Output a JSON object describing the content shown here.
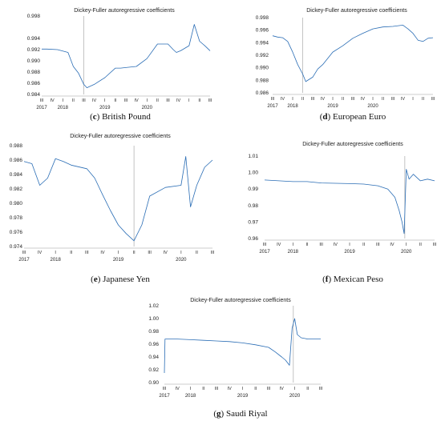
{
  "chart_data": [
    {
      "id": "c",
      "type": "line",
      "title": "Dickey-Fuller autoregressive coefficients",
      "caption_letter": "c",
      "caption_text": " British Pound",
      "ylim": [
        0.984,
        0.998
      ],
      "yticks": [
        "0.998",
        "0.994",
        "0.992",
        "0.990",
        "0.988",
        "0.986",
        "0.984"
      ],
      "ytick_values": [
        0.998,
        0.994,
        0.992,
        0.99,
        0.988,
        0.986,
        0.984
      ],
      "quarters": [
        "III",
        "IV",
        "I",
        "II",
        "III",
        "IV",
        "I",
        "II",
        "III",
        "IV",
        "I",
        "II",
        "III",
        "IV",
        "I",
        "II",
        "III"
      ],
      "years": [
        "2017",
        "2018",
        "2019",
        "2020"
      ],
      "vline_quarter": 4.0,
      "x": [
        0,
        0.5,
        1.5,
        2.5,
        3.0,
        3.5,
        4.0,
        4.3,
        5.0,
        6.0,
        7.0,
        7.5,
        8.0,
        9.0,
        10.0,
        11.0,
        12.0,
        12.5,
        12.8,
        13.2,
        14.0,
        14.5,
        15.0,
        15.5,
        16.0
      ],
      "values": [
        0.9921,
        0.9921,
        0.992,
        0.9915,
        0.989,
        0.9878,
        0.9858,
        0.9852,
        0.9858,
        0.987,
        0.9887,
        0.9887,
        0.9888,
        0.989,
        0.9904,
        0.993,
        0.993,
        0.992,
        0.9915,
        0.9918,
        0.9927,
        0.9965,
        0.9935,
        0.9927,
        0.9918
      ]
    },
    {
      "id": "d",
      "type": "line",
      "title": "Dickey-Fuller autoregressive coefficients",
      "caption_letter": "d",
      "caption_text": " European Euro",
      "ylim": [
        0.986,
        0.998
      ],
      "yticks": [
        "0.998",
        "0.996",
        "0.994",
        "0.992",
        "0.990",
        "0.988",
        "0.986"
      ],
      "ytick_values": [
        0.998,
        0.996,
        0.994,
        0.992,
        0.99,
        0.988,
        0.986
      ],
      "quarters": [
        "III",
        "IV",
        "I",
        "II",
        "III",
        "IV",
        "I",
        "II",
        "III",
        "IV",
        "I",
        "II",
        "III",
        "IV",
        "I",
        "II",
        "III"
      ],
      "years": [
        "2017",
        "2018",
        "2019",
        "2020"
      ],
      "vline_quarter": 3.0,
      "x": [
        0,
        0.5,
        1.0,
        1.5,
        2.0,
        2.5,
        3.0,
        3.3,
        4.0,
        4.5,
        5.0,
        5.5,
        6.0,
        7.0,
        8.0,
        9.0,
        10.0,
        11.0,
        12.0,
        13.0,
        13.5,
        14.0,
        14.5,
        15.0,
        15.5,
        16.0
      ],
      "values": [
        0.9951,
        0.9949,
        0.9948,
        0.9942,
        0.9925,
        0.9905,
        0.989,
        0.9878,
        0.9885,
        0.9898,
        0.9905,
        0.9915,
        0.9925,
        0.9935,
        0.9947,
        0.9955,
        0.9962,
        0.9965,
        0.9966,
        0.9968,
        0.9962,
        0.9955,
        0.9944,
        0.9942,
        0.9947,
        0.9948
      ]
    },
    {
      "id": "e",
      "type": "line",
      "title": "Dickey-Fuller autoregressive coefficients",
      "caption_letter": "e",
      "caption_text": " Japanese Yen",
      "ylim": [
        0.974,
        0.988
      ],
      "yticks": [
        "0.988",
        "0.986",
        "0.984",
        "0.982",
        "0.980",
        "0.978",
        "0.976",
        "0.974"
      ],
      "ytick_values": [
        0.988,
        0.986,
        0.984,
        0.982,
        0.98,
        0.978,
        0.976,
        0.974
      ],
      "quarters": [
        "III",
        "IV",
        "I",
        "II",
        "III",
        "IV",
        "I",
        "II",
        "III",
        "IV",
        "I",
        "II",
        "III"
      ],
      "years": [
        "2017",
        "2018",
        "2019",
        "2020"
      ],
      "vline_quarter": 7.0,
      "x": [
        0,
        0.5,
        1.0,
        1.5,
        2.0,
        2.5,
        3.0,
        4.0,
        4.5,
        5.0,
        5.5,
        6.0,
        6.5,
        7.0,
        7.5,
        8.0,
        9.0,
        10.0,
        10.3,
        10.6,
        11.0,
        11.5,
        12.0
      ],
      "values": [
        0.9858,
        0.9855,
        0.9825,
        0.9835,
        0.9862,
        0.9858,
        0.9853,
        0.9848,
        0.9835,
        0.9812,
        0.979,
        0.977,
        0.9758,
        0.9748,
        0.977,
        0.981,
        0.9822,
        0.9825,
        0.9865,
        0.9795,
        0.9825,
        0.985,
        0.986
      ]
    },
    {
      "id": "f",
      "type": "line",
      "title": "Dickey-Fuller autoregressive coefficients",
      "caption_letter": "f",
      "caption_text": " Mexican Peso",
      "ylim": [
        0.96,
        1.01
      ],
      "yticks": [
        "1.01",
        "1.00",
        "0.99",
        "0.98",
        "0.97",
        "0.96"
      ],
      "ytick_values": [
        1.01,
        1.0,
        0.99,
        0.98,
        0.97,
        0.96
      ],
      "quarters": [
        "III",
        "IV",
        "I",
        "II",
        "III",
        "IV",
        "I",
        "II",
        "III",
        "IV",
        "I",
        "II",
        "III"
      ],
      "years": [
        "2017",
        "2018",
        "2019",
        "2020"
      ],
      "vline_quarter": 9.9,
      "x": [
        0,
        1.0,
        2.0,
        3.0,
        4.0,
        5.0,
        6.0,
        7.0,
        8.0,
        8.7,
        9.2,
        9.5,
        9.7,
        9.85,
        10.0,
        10.2,
        10.5,
        11.0,
        11.5,
        12.0
      ],
      "values": [
        0.9955,
        0.995,
        0.9945,
        0.9945,
        0.9937,
        0.9935,
        0.9933,
        0.993,
        0.992,
        0.99,
        0.985,
        0.977,
        0.97,
        0.963,
        1.002,
        0.996,
        0.999,
        0.995,
        0.996,
        0.995
      ]
    },
    {
      "id": "g",
      "type": "line",
      "title": "Dickey-Fuller autoregressive coefficients",
      "caption_letter": "g",
      "caption_text": " Saudi Riyal",
      "ylim": [
        0.9,
        1.02
      ],
      "yticks": [
        "1.02",
        "1.00",
        "0.98",
        "0.96",
        "0.94",
        "0.92",
        "0.90"
      ],
      "ytick_values": [
        1.02,
        1.0,
        0.98,
        0.96,
        0.94,
        0.92,
        0.9
      ],
      "quarters": [
        "III",
        "IV",
        "I",
        "II",
        "III",
        "IV",
        "I",
        "II",
        "III",
        "IV",
        "I",
        "II",
        "III"
      ],
      "years": [
        "2017",
        "2018",
        "2019",
        "2020"
      ],
      "vline_quarter": 9.9,
      "x": [
        0,
        0.05,
        1.0,
        2.0,
        3.0,
        4.0,
        5.0,
        6.0,
        7.0,
        8.0,
        8.5,
        9.0,
        9.3,
        9.6,
        9.8,
        10.0,
        10.2,
        10.5,
        11.0,
        11.5,
        12.0
      ],
      "values": [
        0.915,
        0.968,
        0.968,
        0.967,
        0.966,
        0.965,
        0.964,
        0.962,
        0.959,
        0.955,
        0.948,
        0.94,
        0.935,
        0.927,
        0.985,
        1.0,
        0.975,
        0.97,
        0.968,
        0.968,
        0.968
      ]
    }
  ]
}
